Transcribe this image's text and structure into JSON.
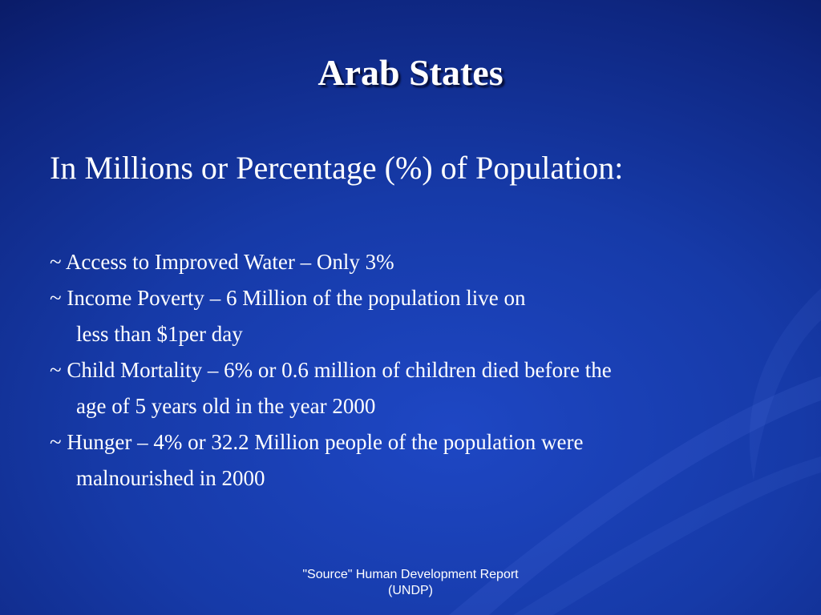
{
  "slide": {
    "title": "Arab States",
    "subtitle": "In Millions or Percentage (%) of Population:",
    "bullets": [
      {
        "lines": [
          "~ Access to Improved Water – Only 3%"
        ]
      },
      {
        "lines": [
          "~ Income Poverty – 6 Million  of the population live on",
          "less than $1per day"
        ]
      },
      {
        "lines": [
          "~ Child Mortality – 6% or 0.6 million of children died before the",
          "age of 5 years old in the year 2000"
        ]
      },
      {
        "lines": [
          "~ Hunger – 4% or 32.2 Million people of the population were",
          "malnourished in 2000"
        ]
      }
    ],
    "footer": {
      "line1": "\"Source\" Human Development Report",
      "line2": "(UNDP)"
    }
  },
  "colors": {
    "background": "#163aa8",
    "text": "#ffffff"
  }
}
